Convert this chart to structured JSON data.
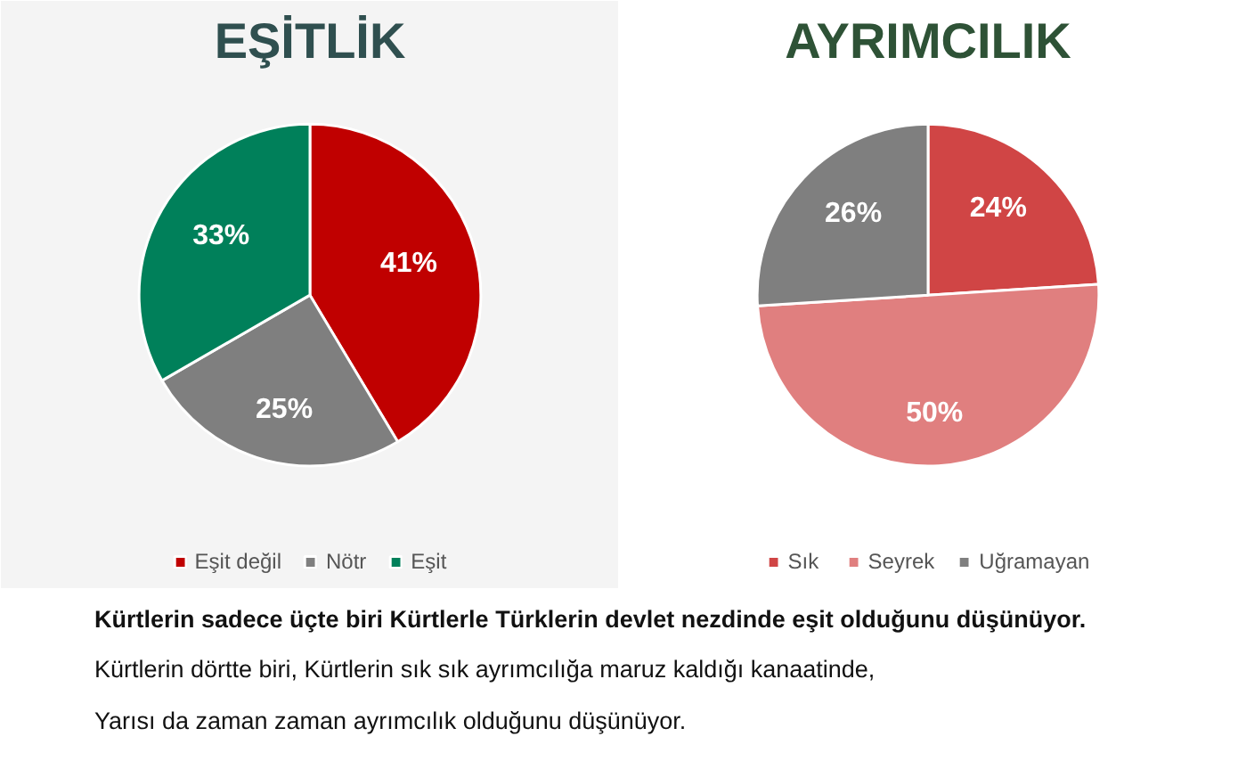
{
  "chart_data": [
    {
      "type": "pie",
      "title": "EŞİTLİK",
      "categories": [
        "Eşit değil",
        "Nötr",
        "Eşit"
      ],
      "values": [
        41,
        25,
        33
      ],
      "colors": [
        "#c00000",
        "#7f7f7f",
        "#00805a"
      ],
      "value_labels": [
        "41%",
        "25%",
        "33%"
      ],
      "legend": "bottom"
    },
    {
      "type": "pie",
      "title": "AYRIMCILIK",
      "categories": [
        "Sık",
        "Seyrek",
        "Uğramayan"
      ],
      "values": [
        24,
        50,
        26
      ],
      "colors": [
        "#d04545",
        "#e07f7f",
        "#7f7f7f"
      ],
      "value_labels": [
        "24%",
        "50%",
        "26%"
      ],
      "legend": "bottom",
      "annotations": [
        "Kürtlerin sadece üçte biri Kürtlerle Türklerin devlet nezdinde eşit olduğunu düşünüyor.",
        "Kürtlerin dörtte biri, Kürtlerin sık sık ayrımcılığa maruz kaldığı kanaatinde,",
        "Yarısı da zaman zaman ayrımcılık olduğunu düşünüyor."
      ]
    }
  ]
}
